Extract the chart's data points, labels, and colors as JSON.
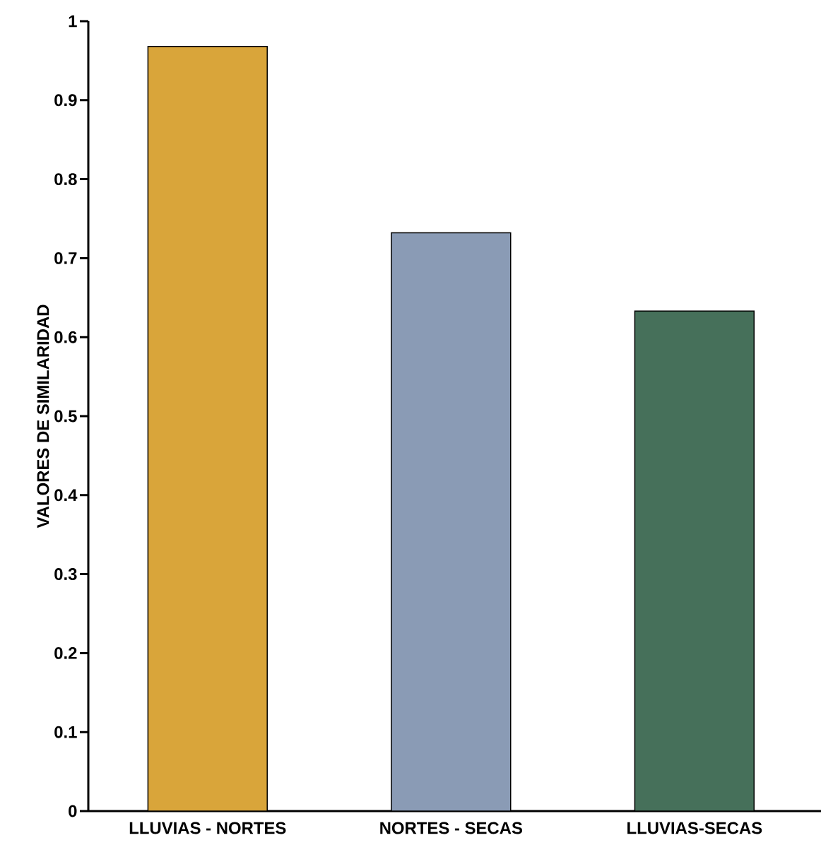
{
  "chart_data": {
    "type": "bar",
    "ylabel": "VALORES DE SIMILARIDAD",
    "categories": [
      "LLUVIAS - NORTES",
      "NORTES - SECAS",
      "LLUVIAS-SECAS"
    ],
    "values": [
      0.968,
      0.732,
      0.633
    ],
    "colors": [
      "#d9a53a",
      "#8a9bb5",
      "#46705a"
    ],
    "ylim": [
      0,
      1
    ],
    "yticks": [
      0,
      0.1,
      0.2,
      0.3,
      0.4,
      0.5,
      0.6,
      0.7,
      0.8,
      0.9,
      1
    ],
    "grid": false
  }
}
